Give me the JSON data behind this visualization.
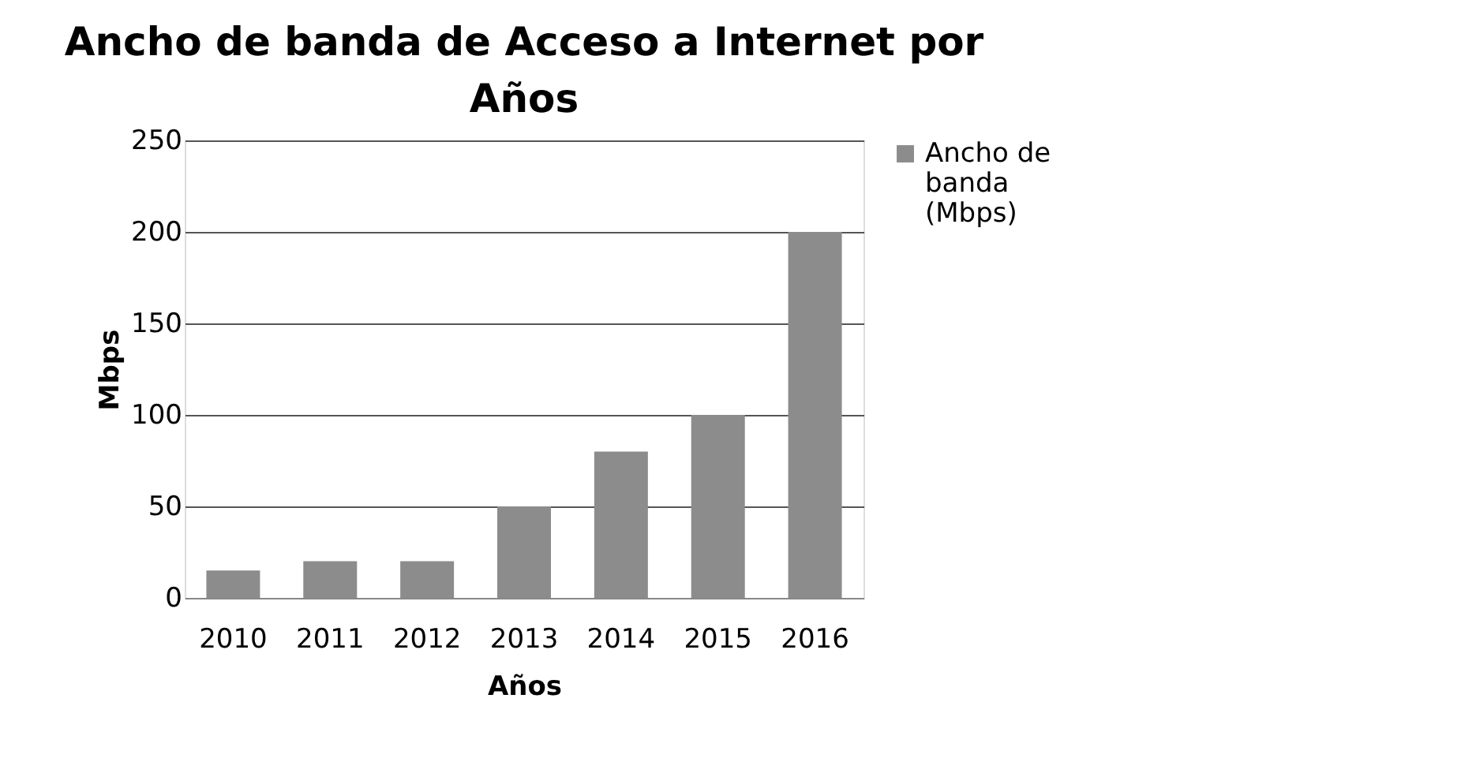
{
  "chart_data": {
    "type": "bar",
    "title": "Ancho de banda de Acceso a Internet por Años",
    "xlabel": "Años",
    "ylabel": "Mbps",
    "categories": [
      "2010",
      "2011",
      "2012",
      "2013",
      "2014",
      "2015",
      "2016"
    ],
    "series": [
      {
        "name": "Ancho de banda (Mbps)",
        "color": "#8c8c8c",
        "values": [
          15,
          20,
          20,
          50,
          80,
          100,
          200
        ]
      }
    ],
    "ylim": [
      0,
      250
    ],
    "yticks": [
      0,
      50,
      100,
      150,
      200,
      250
    ],
    "grid": "y",
    "legend": "right"
  }
}
